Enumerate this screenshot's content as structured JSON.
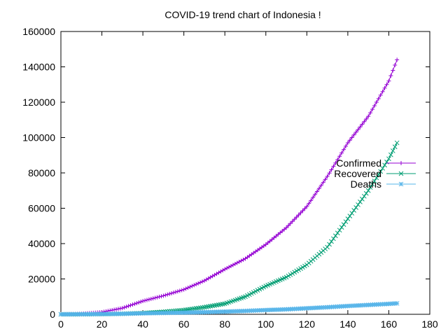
{
  "chart_data": {
    "type": "line",
    "title": "COVID-19 trend chart of Indonesia !",
    "xlabel": "",
    "ylabel": "",
    "xlim": [
      0,
      180
    ],
    "ylim": [
      0,
      160000
    ],
    "xticks": [
      0,
      20,
      40,
      60,
      80,
      100,
      120,
      140,
      160,
      180
    ],
    "yticks": [
      0,
      20000,
      40000,
      60000,
      80000,
      100000,
      120000,
      140000,
      160000
    ],
    "grid": false,
    "legend_position": "right",
    "series": [
      {
        "name": "Confirmed",
        "color": "#9400d3",
        "marker": "plus",
        "x": [
          0,
          10,
          20,
          30,
          40,
          50,
          60,
          70,
          80,
          90,
          100,
          110,
          120,
          130,
          140,
          150,
          160,
          164
        ],
        "values": [
          0,
          300,
          1200,
          3500,
          7500,
          10500,
          14000,
          19000,
          25500,
          31500,
          39500,
          49000,
          61000,
          78000,
          97000,
          112000,
          132000,
          144000
        ]
      },
      {
        "name": "Recovered",
        "color": "#009e73",
        "marker": "cross",
        "x": [
          0,
          10,
          20,
          30,
          40,
          50,
          60,
          70,
          80,
          90,
          100,
          110,
          120,
          130,
          140,
          150,
          160,
          164
        ],
        "values": [
          0,
          20,
          100,
          300,
          700,
          1400,
          2400,
          4000,
          6000,
          10000,
          16000,
          21000,
          28000,
          38000,
          54000,
          70000,
          88000,
          97000
        ]
      },
      {
        "name": "Deaths",
        "color": "#56b4e9",
        "marker": "star",
        "x": [
          0,
          10,
          20,
          30,
          40,
          50,
          60,
          70,
          80,
          90,
          100,
          110,
          120,
          130,
          140,
          150,
          160,
          164
        ],
        "values": [
          0,
          30,
          150,
          300,
          550,
          750,
          950,
          1200,
          1500,
          1900,
          2400,
          2800,
          3400,
          4000,
          4700,
          5300,
          5900,
          6200
        ]
      }
    ]
  }
}
